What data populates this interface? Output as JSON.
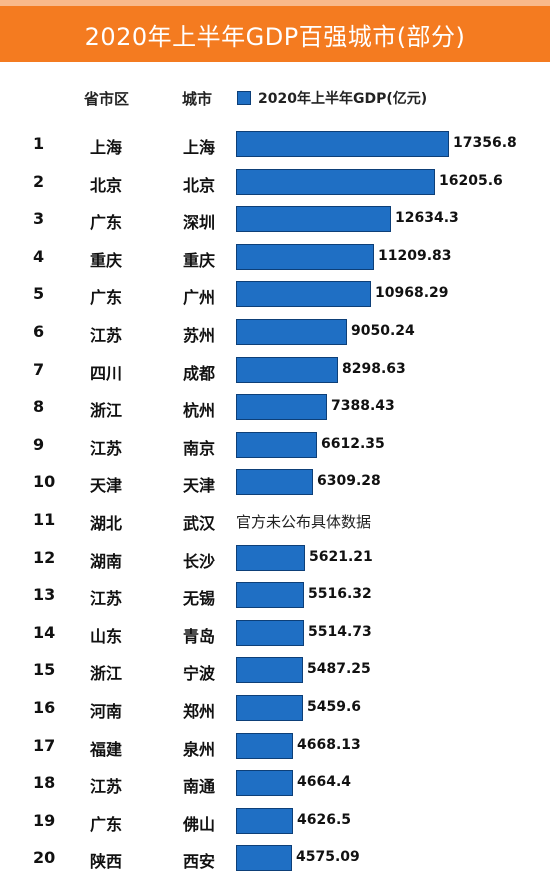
{
  "title": "2020年上半年GDP百强城市(部分)",
  "headers": {
    "rank": "",
    "province": "省市区",
    "city": "城市",
    "legend": "2020年上半年GDP(亿元)"
  },
  "colors": {
    "title_bg": "#f47b20",
    "bar": "#1f6fc4"
  },
  "chart_data": {
    "type": "bar",
    "orientation": "horizontal",
    "title": "2020年上半年GDP百强城市(部分)",
    "legend": [
      "2020年上半年GDP(亿元)"
    ],
    "columns": [
      "省市区",
      "城市"
    ],
    "rows": [
      {
        "rank": "1",
        "province": "上海",
        "city": "上海",
        "value": 17356.8,
        "label": "17356.8"
      },
      {
        "rank": "2",
        "province": "北京",
        "city": "北京",
        "value": 16205.6,
        "label": "16205.6"
      },
      {
        "rank": "3",
        "province": "广东",
        "city": "深圳",
        "value": 12634.3,
        "label": "12634.3"
      },
      {
        "rank": "4",
        "province": "重庆",
        "city": "重庆",
        "value": 11209.83,
        "label": "11209.83"
      },
      {
        "rank": "5",
        "province": "广东",
        "city": "广州",
        "value": 10968.29,
        "label": "10968.29"
      },
      {
        "rank": "6",
        "province": "江苏",
        "city": "苏州",
        "value": 9050.24,
        "label": "9050.24"
      },
      {
        "rank": "7",
        "province": "四川",
        "city": "成都",
        "value": 8298.63,
        "label": "8298.63"
      },
      {
        "rank": "8",
        "province": "浙江",
        "city": "杭州",
        "value": 7388.43,
        "label": "7388.43"
      },
      {
        "rank": "9",
        "province": "江苏",
        "city": "南京",
        "value": 6612.35,
        "label": "6612.35"
      },
      {
        "rank": "10",
        "province": "天津",
        "city": "天津",
        "value": 6309.28,
        "label": "6309.28"
      },
      {
        "rank": "11",
        "province": "湖北",
        "city": "武汉",
        "value": null,
        "label": "官方未公布具体数据"
      },
      {
        "rank": "12",
        "province": "湖南",
        "city": "长沙",
        "value": 5621.21,
        "label": "5621.21"
      },
      {
        "rank": "13",
        "province": "江苏",
        "city": "无锡",
        "value": 5516.32,
        "label": "5516.32"
      },
      {
        "rank": "14",
        "province": "山东",
        "city": "青岛",
        "value": 5514.73,
        "label": "5514.73"
      },
      {
        "rank": "15",
        "province": "浙江",
        "city": "宁波",
        "value": 5487.25,
        "label": "5487.25"
      },
      {
        "rank": "16",
        "province": "河南",
        "city": "郑州",
        "value": 5459.6,
        "label": "5459.6"
      },
      {
        "rank": "17",
        "province": "福建",
        "city": "泉州",
        "value": 4668.13,
        "label": "4668.13"
      },
      {
        "rank": "18",
        "province": "江苏",
        "city": "南通",
        "value": 4664.4,
        "label": "4664.4"
      },
      {
        "rank": "19",
        "province": "广东",
        "city": "佛山",
        "value": 4626.5,
        "label": "4626.5"
      },
      {
        "rank": "20",
        "province": "陕西",
        "city": "西安",
        "value": 4575.09,
        "label": "4575.09"
      }
    ]
  }
}
